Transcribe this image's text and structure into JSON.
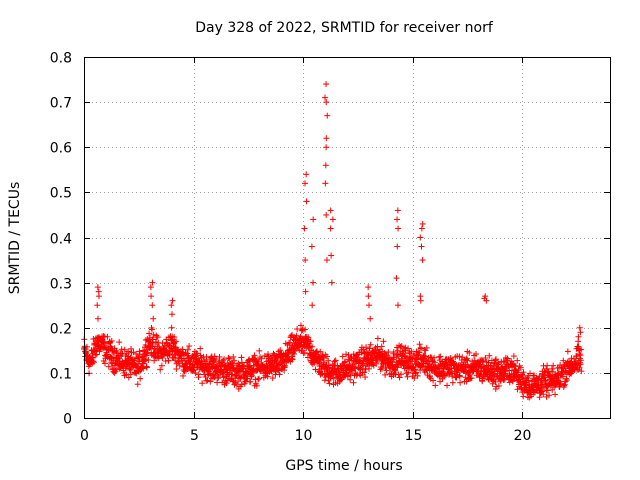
{
  "chart_data": {
    "type": "scatter",
    "title": "Day 328 of 2022, SRMTID for receiver norf",
    "xlabel": "GPS time / hours",
    "ylabel": "SRMTID / TECUs",
    "xlim": [
      0,
      24
    ],
    "ylim": [
      0,
      0.8
    ],
    "xticks": [
      0,
      5,
      10,
      15,
      20
    ],
    "xtick_labels": [
      "0",
      "5",
      "10",
      "15",
      "20"
    ],
    "yticks": [
      0,
      0.1,
      0.2,
      0.3,
      0.4,
      0.5,
      0.6,
      0.7,
      0.8
    ],
    "ytick_labels": [
      "0",
      "0.1",
      "0.2",
      "0.3",
      "0.4",
      "0.5",
      "0.6",
      "0.7",
      "0.8"
    ],
    "grid": true,
    "marker": "+",
    "color": "#ff0000",
    "trend_points": [
      [
        0.0,
        0.15
      ],
      [
        0.3,
        0.12
      ],
      [
        0.6,
        0.17
      ],
      [
        1.0,
        0.15
      ],
      [
        1.5,
        0.13
      ],
      [
        2.0,
        0.12
      ],
      [
        2.5,
        0.11
      ],
      [
        3.0,
        0.17
      ],
      [
        3.5,
        0.14
      ],
      [
        4.0,
        0.16
      ],
      [
        4.5,
        0.13
      ],
      [
        5.0,
        0.12
      ],
      [
        6.0,
        0.11
      ],
      [
        7.0,
        0.1
      ],
      [
        8.0,
        0.11
      ],
      [
        9.0,
        0.12
      ],
      [
        9.8,
        0.17
      ],
      [
        10.2,
        0.16
      ],
      [
        10.6,
        0.13
      ],
      [
        11.0,
        0.11
      ],
      [
        11.5,
        0.1
      ],
      [
        12.0,
        0.11
      ],
      [
        12.5,
        0.12
      ],
      [
        13.0,
        0.13
      ],
      [
        13.5,
        0.14
      ],
      [
        14.0,
        0.12
      ],
      [
        14.5,
        0.13
      ],
      [
        15.0,
        0.12
      ],
      [
        15.5,
        0.13
      ],
      [
        16.0,
        0.11
      ],
      [
        17.0,
        0.11
      ],
      [
        18.0,
        0.11
      ],
      [
        19.0,
        0.1
      ],
      [
        19.5,
        0.11
      ],
      [
        20.0,
        0.08
      ],
      [
        20.5,
        0.07
      ],
      [
        21.0,
        0.08
      ],
      [
        21.5,
        0.08
      ],
      [
        22.0,
        0.11
      ],
      [
        22.7,
        0.13
      ]
    ],
    "spikes": [
      {
        "x": 0.65,
        "values": [
          0.22,
          0.25,
          0.27,
          0.28,
          0.29
        ]
      },
      {
        "x": 3.1,
        "values": [
          0.22,
          0.25,
          0.27,
          0.29,
          0.3
        ]
      },
      {
        "x": 4.0,
        "values": [
          0.2,
          0.23,
          0.25,
          0.26
        ]
      },
      {
        "x": 10.1,
        "values": [
          0.28,
          0.35,
          0.42,
          0.48,
          0.52,
          0.54
        ]
      },
      {
        "x": 10.4,
        "values": [
          0.25,
          0.3,
          0.38,
          0.44
        ]
      },
      {
        "x": 11.05,
        "values": [
          0.35,
          0.45,
          0.52,
          0.56,
          0.6,
          0.62,
          0.67,
          0.7,
          0.71,
          0.74
        ]
      },
      {
        "x": 11.3,
        "values": [
          0.3,
          0.36,
          0.42,
          0.44,
          0.46
        ]
      },
      {
        "x": 13.0,
        "values": [
          0.22,
          0.25,
          0.27,
          0.29
        ]
      },
      {
        "x": 14.3,
        "values": [
          0.25,
          0.31,
          0.38,
          0.42,
          0.44,
          0.46
        ]
      },
      {
        "x": 15.4,
        "values": [
          0.26,
          0.27,
          0.35,
          0.38,
          0.4,
          0.42,
          0.43
        ]
      },
      {
        "x": 18.3,
        "values": [
          0.26,
          0.265,
          0.27
        ]
      },
      {
        "x": 22.6,
        "values": [
          0.17,
          0.18,
          0.19,
          0.2
        ]
      }
    ]
  }
}
